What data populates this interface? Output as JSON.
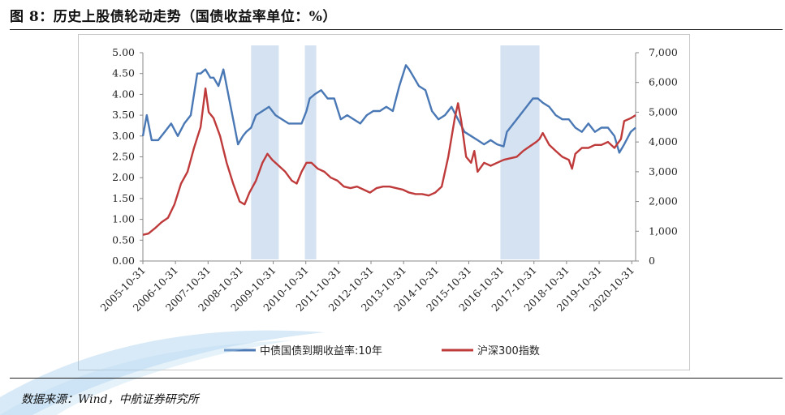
{
  "figure": {
    "title": "图 8：历史上股债轮动走势（国债收益率单位：%）",
    "source": "数据来源：Wind，中航证券研究所"
  },
  "colors": {
    "bond": "#4a78b5",
    "stock": "#bf3b3b",
    "shade": "#d5e2f1"
  },
  "chart_data": {
    "type": "line",
    "title": "历史上股债轮动走势",
    "x_ticks": [
      "2005-10-31",
      "2006-10-31",
      "2007-10-31",
      "2008-10-31",
      "2009-10-31",
      "2010-10-31",
      "2011-10-31",
      "2012-10-31",
      "2013-10-31",
      "2014-10-31",
      "2015-10-31",
      "2016-10-31",
      "2017-10-31",
      "2018-10-31",
      "2019-10-31",
      "2020-10-31"
    ],
    "x_range": [
      2005.83,
      2020.95
    ],
    "y_left": {
      "label": "中债国债到期收益率:10年",
      "range": [
        0,
        5
      ],
      "ticks": [
        "0.00",
        "0.50",
        "1.00",
        "1.50",
        "2.00",
        "2.50",
        "3.00",
        "3.50",
        "4.00",
        "4.50",
        "5.00"
      ]
    },
    "y_right": {
      "label": "沪深300指数",
      "range": [
        0,
        7000
      ],
      "ticks": [
        "0",
        "1,000",
        "2,000",
        "3,000",
        "4,000",
        "5,000",
        "6,000",
        "7,000"
      ]
    },
    "shaded_periods": [
      [
        2009.15,
        2010.0
      ],
      [
        2010.8,
        2011.15
      ],
      [
        2016.8,
        2018.0
      ]
    ],
    "series": [
      {
        "name": "中债国债到期收益率:10年",
        "axis": "left",
        "x": [
          2005.83,
          2005.95,
          2006.1,
          2006.3,
          2006.5,
          2006.7,
          2006.9,
          2007.1,
          2007.3,
          2007.5,
          2007.6,
          2007.75,
          2007.9,
          2008.0,
          2008.15,
          2008.3,
          2008.45,
          2008.6,
          2008.75,
          2008.9,
          2009.0,
          2009.15,
          2009.3,
          2009.5,
          2009.7,
          2009.9,
          2010.1,
          2010.3,
          2010.5,
          2010.7,
          2010.85,
          2010.95,
          2011.1,
          2011.3,
          2011.5,
          2011.7,
          2011.9,
          2012.1,
          2012.3,
          2012.5,
          2012.7,
          2012.9,
          2013.1,
          2013.3,
          2013.5,
          2013.7,
          2013.9,
          2014.0,
          2014.15,
          2014.3,
          2014.5,
          2014.7,
          2014.9,
          2015.1,
          2015.3,
          2015.5,
          2015.7,
          2015.9,
          2016.1,
          2016.3,
          2016.5,
          2016.7,
          2016.9,
          2017.0,
          2017.2,
          2017.4,
          2017.6,
          2017.8,
          2017.95,
          2018.1,
          2018.3,
          2018.5,
          2018.7,
          2018.9,
          2019.1,
          2019.3,
          2019.5,
          2019.7,
          2019.9,
          2020.1,
          2020.3,
          2020.45,
          2020.6,
          2020.8,
          2020.95
        ],
        "y": [
          3.0,
          3.5,
          2.9,
          2.9,
          3.1,
          3.3,
          3.0,
          3.3,
          3.5,
          4.5,
          4.5,
          4.6,
          4.4,
          4.4,
          4.2,
          4.6,
          4.0,
          3.4,
          2.8,
          3.0,
          3.1,
          3.2,
          3.5,
          3.6,
          3.7,
          3.5,
          3.4,
          3.3,
          3.3,
          3.3,
          3.6,
          3.9,
          4.0,
          4.1,
          3.9,
          3.9,
          3.4,
          3.5,
          3.4,
          3.3,
          3.5,
          3.6,
          3.6,
          3.7,
          3.6,
          4.2,
          4.7,
          4.6,
          4.4,
          4.2,
          4.1,
          3.6,
          3.4,
          3.5,
          3.7,
          3.4,
          3.1,
          3.0,
          2.9,
          2.8,
          2.9,
          2.8,
          2.75,
          3.1,
          3.3,
          3.5,
          3.7,
          3.9,
          3.9,
          3.8,
          3.7,
          3.5,
          3.4,
          3.4,
          3.2,
          3.1,
          3.3,
          3.1,
          3.2,
          3.2,
          3.0,
          2.6,
          2.8,
          3.1,
          3.2
        ]
      },
      {
        "name": "沪深300指数",
        "axis": "right",
        "x": [
          2005.83,
          2006.0,
          2006.2,
          2006.4,
          2006.6,
          2006.8,
          2007.0,
          2007.2,
          2007.4,
          2007.6,
          2007.75,
          2007.85,
          2008.0,
          2008.2,
          2008.4,
          2008.6,
          2008.8,
          2008.95,
          2009.1,
          2009.3,
          2009.5,
          2009.65,
          2009.8,
          2010.0,
          2010.2,
          2010.4,
          2010.55,
          2010.7,
          2010.85,
          2011.0,
          2011.2,
          2011.4,
          2011.6,
          2011.8,
          2012.0,
          2012.2,
          2012.4,
          2012.6,
          2012.8,
          2013.0,
          2013.2,
          2013.4,
          2013.6,
          2013.8,
          2014.0,
          2014.2,
          2014.4,
          2014.6,
          2014.8,
          2015.0,
          2015.2,
          2015.4,
          2015.5,
          2015.6,
          2015.75,
          2015.9,
          2016.0,
          2016.1,
          2016.3,
          2016.5,
          2016.7,
          2016.9,
          2017.1,
          2017.3,
          2017.5,
          2017.7,
          2017.9,
          2018.0,
          2018.1,
          2018.3,
          2018.5,
          2018.7,
          2018.9,
          2019.0,
          2019.1,
          2019.3,
          2019.5,
          2019.7,
          2019.9,
          2020.1,
          2020.3,
          2020.5,
          2020.6,
          2020.8,
          2020.95
        ],
        "y": [
          880,
          920,
          1100,
          1300,
          1450,
          1900,
          2600,
          3000,
          3800,
          4500,
          5800,
          5000,
          4800,
          4200,
          3300,
          2600,
          2000,
          1900,
          2300,
          2700,
          3300,
          3600,
          3400,
          3200,
          3000,
          2700,
          2600,
          3000,
          3300,
          3300,
          3100,
          3000,
          2800,
          2700,
          2500,
          2450,
          2500,
          2400,
          2300,
          2450,
          2500,
          2500,
          2450,
          2400,
          2300,
          2250,
          2250,
          2200,
          2300,
          2500,
          3500,
          4800,
          5300,
          4700,
          3500,
          3300,
          3700,
          3000,
          3300,
          3200,
          3300,
          3400,
          3450,
          3500,
          3700,
          3850,
          4000,
          4100,
          4300,
          3900,
          3700,
          3500,
          3400,
          3100,
          3600,
          3800,
          3800,
          3900,
          3900,
          4000,
          3800,
          4100,
          4700,
          4800,
          4900
        ]
      }
    ]
  },
  "legend": {
    "bond_label": "中债国债到期收益率:10年",
    "stock_label": "沪深300指数"
  }
}
